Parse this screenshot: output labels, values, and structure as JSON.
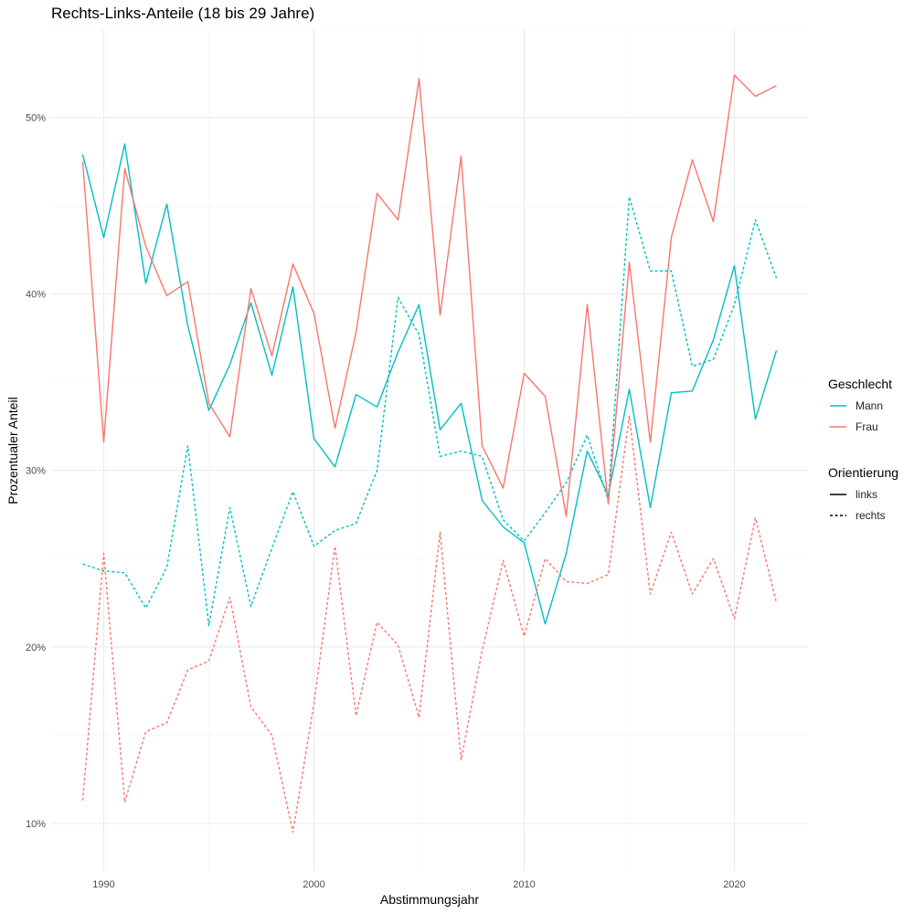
{
  "chart_data": {
    "type": "line",
    "title": "Rechts-Links-Anteile (18 bis 29 Jahre)",
    "xlabel": "Abstimmungsjahr",
    "ylabel": "Prozentualer Anteil",
    "xlim": [
      1987.5,
      2023.5
    ],
    "ylim": [
      7.3,
      55.0
    ],
    "x_ticks": [
      1990,
      2000,
      2010,
      2020
    ],
    "x_tick_labels": [
      "1990",
      "2000",
      "2010",
      "2020"
    ],
    "y_ticks": [
      10,
      20,
      30,
      40,
      50
    ],
    "y_tick_labels": [
      "10%",
      "20%",
      "30%",
      "40%",
      "50%"
    ],
    "x": [
      1989,
      1990,
      1991,
      1992,
      1993,
      1994,
      1995,
      1996,
      1997,
      1998,
      1999,
      2000,
      2001,
      2002,
      2003,
      2004,
      2005,
      2006,
      2007,
      2008,
      2009,
      2010,
      2011,
      2012,
      2013,
      2014,
      2015,
      2016,
      2017,
      2018,
      2019,
      2020,
      2021,
      2022
    ],
    "series": [
      {
        "name": "Mann – links",
        "geschlecht": "Mann",
        "orientierung": "links",
        "color": "#00BFC4",
        "dash": "solid",
        "values": [
          47.9,
          43.2,
          48.5,
          40.6,
          45.1,
          38.2,
          33.4,
          36.0,
          39.5,
          35.4,
          40.4,
          31.8,
          30.2,
          34.3,
          33.6,
          36.7,
          39.4,
          32.3,
          33.8,
          28.3,
          26.8,
          25.9,
          21.3,
          25.3,
          31.1,
          28.6,
          34.6,
          27.9,
          34.4,
          34.5,
          37.4,
          41.6,
          32.9,
          36.8
        ]
      },
      {
        "name": "Mann – rechts",
        "geschlecht": "Mann",
        "orientierung": "rechts",
        "color": "#00BFC4",
        "dash": "dashed",
        "values": [
          24.7,
          24.3,
          24.2,
          22.2,
          24.5,
          31.4,
          21.2,
          27.9,
          22.3,
          25.6,
          28.8,
          25.7,
          26.6,
          27.0,
          30.0,
          39.8,
          37.7,
          30.8,
          31.1,
          30.8,
          27.2,
          26.0,
          27.6,
          29.3,
          32.0,
          28.3,
          45.5,
          41.3,
          41.3,
          35.9,
          36.3,
          39.4,
          44.2,
          40.9
        ]
      },
      {
        "name": "Frau – links",
        "geschlecht": "Frau",
        "orientierung": "links",
        "color": "#F8766D",
        "dash": "solid",
        "values": [
          47.5,
          31.6,
          47.1,
          42.7,
          39.9,
          40.7,
          33.8,
          31.9,
          40.3,
          36.5,
          41.7,
          38.9,
          32.4,
          37.8,
          45.7,
          44.2,
          52.2,
          38.8,
          47.8,
          31.4,
          29.0,
          35.5,
          34.2,
          27.4,
          39.4,
          28.1,
          41.8,
          31.6,
          43.2,
          47.6,
          44.1,
          52.4,
          51.2,
          51.8
        ]
      },
      {
        "name": "Frau – rechts",
        "geschlecht": "Frau",
        "orientierung": "rechts",
        "color": "#F8766D",
        "dash": "dashed",
        "values": [
          11.3,
          25.3,
          11.2,
          15.2,
          15.7,
          18.7,
          19.2,
          22.8,
          16.6,
          15.0,
          9.5,
          16.8,
          25.7,
          16.1,
          21.4,
          20.1,
          16.0,
          26.5,
          13.6,
          19.8,
          24.9,
          20.6,
          25.0,
          23.7,
          23.6,
          24.1,
          33.1,
          23.0,
          26.5,
          23.0,
          25.0,
          21.6,
          27.3,
          22.5
        ]
      }
    ],
    "legend": {
      "placement": "right",
      "groups": [
        {
          "title": "Geschlecht",
          "items": [
            {
              "label": "Mann",
              "color": "#00BFC4",
              "dash": "solid"
            },
            {
              "label": "Frau",
              "color": "#F8766D",
              "dash": "solid"
            }
          ]
        },
        {
          "title": "Orientierung",
          "items": [
            {
              "label": "links",
              "color": "#000000",
              "dash": "solid"
            },
            {
              "label": "rechts",
              "color": "#000000",
              "dash": "dashed"
            }
          ]
        }
      ]
    },
    "grid": true
  }
}
